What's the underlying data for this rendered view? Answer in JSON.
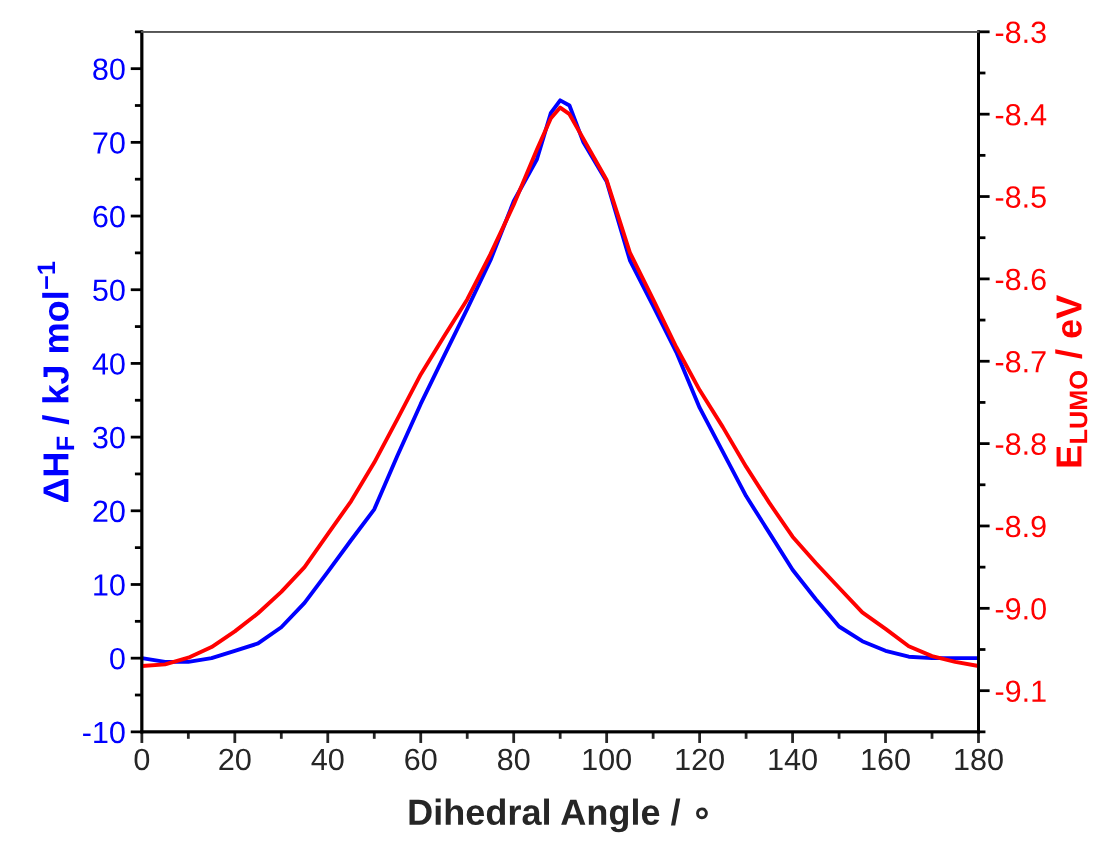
{
  "chart_data": {
    "type": "line",
    "xlabel": "Dihedral Angle / ∘",
    "ylabel": "ΔH$_{F}$ / kJ mol$^{−1}$",
    "y2label": "E$_{LUMO}$ / eV",
    "xlim": [
      0,
      180
    ],
    "xticks": [
      0,
      20,
      40,
      60,
      80,
      100,
      120,
      140,
      160,
      180
    ],
    "ylim": [
      -10,
      85
    ],
    "yticks": [
      -10,
      0,
      10,
      20,
      30,
      40,
      50,
      60,
      70,
      80
    ],
    "y2lim": [
      -9.15,
      -8.3
    ],
    "y2ticks": [
      {
        "value": -9.1,
        "label": "-9.1"
      },
      {
        "value": -9.0,
        "label": "-9.0"
      },
      {
        "value": -8.9,
        "label": "-8.9"
      },
      {
        "value": -8.8,
        "label": "-8.8"
      },
      {
        "value": -8.7,
        "label": "-8.7"
      },
      {
        "value": -8.6,
        "label": "-8.6"
      },
      {
        "value": -8.5,
        "label": "-8.5"
      },
      {
        "value": -8.4,
        "label": "-8.4"
      },
      {
        "value": -8.3,
        "label": "-8.3"
      }
    ],
    "grid": false,
    "legend": false,
    "marker": "none",
    "line_style": "solid",
    "series": [
      {
        "color": "#0000ff",
        "x": [
          0,
          5,
          10,
          15,
          20,
          25,
          30,
          35,
          40,
          45,
          50,
          55,
          60,
          65,
          70,
          75,
          80,
          85,
          88,
          90,
          92,
          95,
          100,
          105,
          110,
          115,
          120,
          125,
          130,
          135,
          140,
          145,
          150,
          155,
          160,
          165,
          170,
          175,
          180
        ],
        "values": [
          0,
          -0.5,
          -0.5,
          0,
          1,
          2,
          4.2,
          7.5,
          11.7,
          16,
          20.2,
          27.5,
          34.5,
          41,
          47.4,
          54,
          62,
          67.7,
          74,
          75.7,
          75,
          70,
          64.7,
          54,
          47.8,
          41.5,
          34,
          28,
          22,
          17,
          12,
          8,
          4.3,
          2.3,
          1,
          0.2,
          0,
          0,
          0
        ]
      },
      {
        "color": "#ff0000",
        "axis": "y2",
        "x": [
          0,
          5,
          10,
          15,
          20,
          25,
          30,
          35,
          40,
          45,
          50,
          55,
          60,
          65,
          70,
          75,
          80,
          85,
          88,
          90,
          92,
          95,
          100,
          105,
          110,
          115,
          120,
          125,
          130,
          135,
          140,
          145,
          150,
          155,
          160,
          165,
          170,
          175,
          180
        ],
        "values": [
          -9.07,
          -9.068,
          -9.06,
          -9.047,
          -9.028,
          -9.006,
          -8.98,
          -8.95,
          -8.91,
          -8.87,
          -8.823,
          -8.77,
          -8.716,
          -8.67,
          -8.625,
          -8.57,
          -8.51,
          -8.443,
          -8.405,
          -8.392,
          -8.4,
          -8.43,
          -8.48,
          -8.568,
          -8.625,
          -8.683,
          -8.735,
          -8.78,
          -8.828,
          -8.872,
          -8.913,
          -8.945,
          -8.975,
          -9.005,
          -9.025,
          -9.046,
          -9.058,
          -9.065,
          -9.07
        ]
      }
    ]
  }
}
